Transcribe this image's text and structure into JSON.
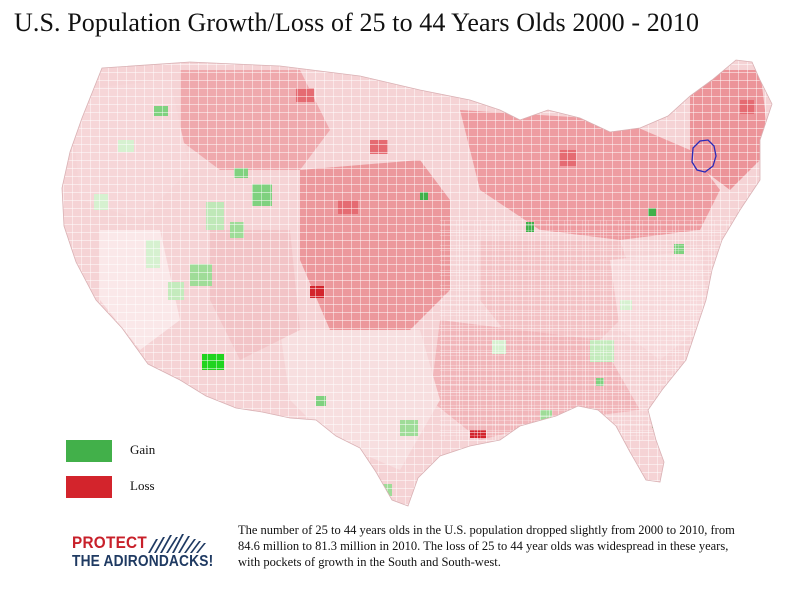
{
  "title": "U.S. Population Growth/Loss of 25 to 44 Years Olds 2000 - 2010",
  "colors": {
    "gain": "#42b04a",
    "loss": "#d3242c",
    "background": "#ffffff",
    "region_outline": "#2b2bb8"
  },
  "legend": [
    {
      "label": "Gain",
      "color": "#42b04a"
    },
    {
      "label": "Loss",
      "color": "#d3242c"
    }
  ],
  "logo": {
    "line1": "PROTECT",
    "line2": "THE ADIRONDACKS!",
    "icon": "mountain-stripes-icon"
  },
  "caption": "The number of 25 to 44 years olds in the U.S. population dropped slightly from 2000 to 2010, from 84.6 million to 81.3 million in 2010. The loss of 25 to 44 year olds was widespread in these years, with pockets of growth in the South and South-west."
}
